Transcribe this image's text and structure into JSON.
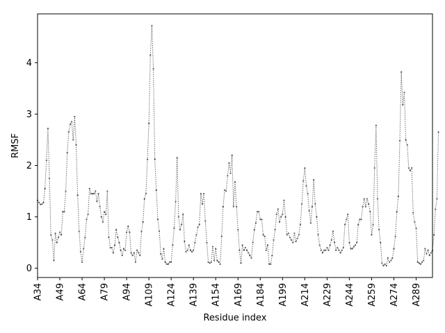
{
  "chart_data": {
    "type": "line",
    "xlabel": "Residue index",
    "ylabel": "RMSF",
    "x_start": 34,
    "x_end": 300,
    "xlim": [
      34,
      300
    ],
    "ylim": [
      -0.18,
      4.95
    ],
    "yticks": [
      0,
      1,
      2,
      3,
      4
    ],
    "ytick_labels": [
      "0",
      "1",
      "2",
      "3",
      "4"
    ],
    "xticks": [
      34,
      49,
      64,
      79,
      94,
      109,
      124,
      139,
      154,
      169,
      184,
      199,
      214,
      229,
      244,
      259,
      274,
      289
    ],
    "xtick_labels": [
      "A34",
      "A49",
      "A64",
      "A79",
      "A94",
      "A109",
      "A124",
      "A139",
      "A154",
      "A169",
      "A184",
      "A199",
      "A214",
      "A229",
      "A244",
      "A259",
      "A274",
      "A289"
    ],
    "grid": false,
    "line_color": "#555555",
    "line_style": "dotted",
    "marker": "point",
    "series": [
      {
        "values": [
          1.32,
          1.28,
          1.24,
          1.25,
          1.28,
          1.55,
          2.1,
          2.72,
          1.75,
          0.65,
          0.55,
          0.15,
          0.68,
          0.5,
          0.6,
          0.7,
          0.65,
          1.1,
          1.1,
          1.5,
          2.25,
          2.65,
          2.8,
          2.85,
          2.5,
          2.95,
          2.4,
          1.42,
          0.72,
          0.32,
          0.12,
          0.38,
          0.6,
          0.95,
          1.05,
          1.55,
          1.45,
          1.45,
          1.45,
          1.5,
          1.3,
          1.45,
          1.2,
          1.0,
          0.9,
          1.1,
          1.05,
          1.5,
          0.6,
          0.4,
          0.4,
          0.3,
          0.45,
          0.75,
          0.6,
          0.5,
          0.35,
          0.25,
          0.38,
          0.35,
          0.7,
          0.82,
          0.7,
          0.3,
          0.25,
          0.3,
          0.12,
          0.35,
          0.3,
          0.25,
          0.72,
          0.9,
          1.35,
          1.45,
          2.12,
          2.82,
          4.15,
          4.72,
          3.88,
          2.12,
          1.52,
          0.95,
          0.72,
          0.28,
          0.18,
          0.38,
          0.12,
          0.08,
          0.08,
          0.12,
          0.12,
          0.45,
          0.78,
          1.3,
          2.15,
          1.0,
          0.75,
          0.85,
          1.05,
          0.52,
          0.32,
          0.35,
          0.45,
          0.35,
          0.32,
          0.35,
          0.5,
          0.65,
          0.8,
          0.85,
          1.45,
          1.25,
          1.45,
          0.92,
          0.5,
          0.12,
          0.1,
          0.12,
          0.42,
          0.15,
          0.38,
          0.15,
          0.12,
          0.08,
          0.62,
          1.2,
          1.52,
          1.5,
          1.8,
          2.05,
          1.85,
          2.2,
          1.2,
          1.68,
          1.2,
          0.75,
          0.35,
          0.1,
          0.45,
          0.35,
          0.4,
          0.35,
          0.3,
          0.25,
          0.2,
          0.5,
          0.75,
          0.88,
          1.1,
          1.1,
          0.95,
          0.95,
          0.65,
          0.62,
          0.35,
          0.45,
          0.08,
          0.08,
          0.25,
          0.55,
          0.75,
          1.05,
          1.15,
          0.9,
          1.0,
          1.05,
          1.32,
          1.0,
          0.65,
          0.68,
          0.6,
          0.55,
          0.5,
          0.68,
          0.52,
          0.58,
          0.65,
          0.85,
          1.25,
          1.7,
          1.95,
          1.6,
          1.45,
          1.12,
          0.88,
          1.2,
          1.72,
          1.25,
          1.0,
          0.65,
          0.45,
          0.35,
          0.3,
          0.35,
          0.35,
          0.4,
          0.35,
          0.45,
          0.55,
          0.72,
          0.5,
          0.35,
          0.4,
          0.35,
          0.3,
          0.35,
          0.4,
          0.85,
          0.95,
          1.05,
          0.5,
          0.38,
          0.38,
          0.42,
          0.45,
          0.5,
          0.85,
          0.95,
          0.95,
          1.2,
          1.35,
          1.2,
          1.35,
          1.25,
          1.1,
          0.65,
          0.85,
          1.95,
          2.78,
          1.35,
          0.75,
          0.5,
          0.1,
          0.05,
          0.08,
          0.05,
          0.2,
          0.12,
          0.15,
          0.2,
          0.38,
          0.62,
          1.1,
          1.4,
          2.48,
          3.82,
          3.18,
          3.42,
          2.5,
          2.4,
          1.95,
          1.9,
          1.95,
          1.08,
          0.9,
          0.78,
          0.12,
          0.1,
          0.08,
          0.12,
          0.15,
          0.38,
          0.28,
          0.35,
          0.25,
          0.3,
          0.35,
          0.65,
          1.15,
          1.35,
          2.65
        ]
      }
    ]
  }
}
